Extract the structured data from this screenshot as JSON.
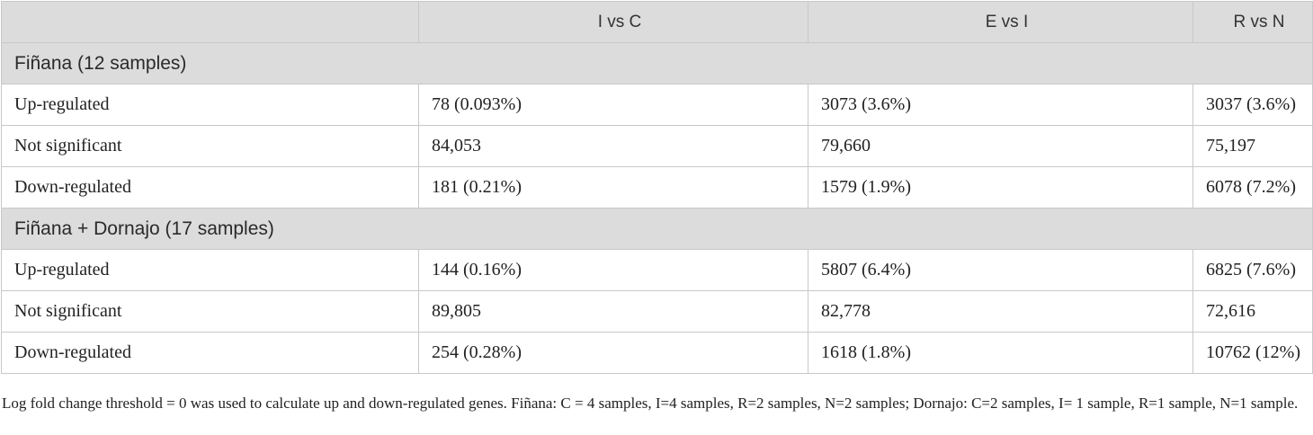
{
  "table": {
    "headers": [
      "",
      "I vs C",
      "E vs I",
      "R vs N"
    ],
    "groups": [
      {
        "title": "Fiñana (12 samples)",
        "rows": [
          {
            "label": "Up-regulated",
            "values": [
              "78 (0.093%)",
              "3073 (3.6%)",
              "3037 (3.6%)"
            ]
          },
          {
            "label": "Not significant",
            "values": [
              "84,053",
              "79,660",
              "75,197"
            ]
          },
          {
            "label": "Down-regulated",
            "values": [
              "181 (0.21%)",
              "1579 (1.9%)",
              "6078 (7.2%)"
            ]
          }
        ]
      },
      {
        "title": "Fiñana + Dornajo (17 samples)",
        "rows": [
          {
            "label": "Up-regulated",
            "values": [
              "144 (0.16%)",
              "5807 (6.4%)",
              "6825 (7.6%)"
            ]
          },
          {
            "label": "Not significant",
            "values": [
              "89,805",
              "82,778",
              "72,616"
            ]
          },
          {
            "label": "Down-regulated",
            "values": [
              "254 (0.28%)",
              "1618 (1.8%)",
              "10762 (12%)"
            ]
          }
        ]
      }
    ]
  },
  "footnote": "Log fold change threshold = 0 was used to calculate up and down-regulated genes. Fiñana: C = 4 samples, I=4 samples, R=2 samples, N=2 samples; Dornajo: C=2 samples, I= 1 sample, R=1 sample, N=1 sample."
}
